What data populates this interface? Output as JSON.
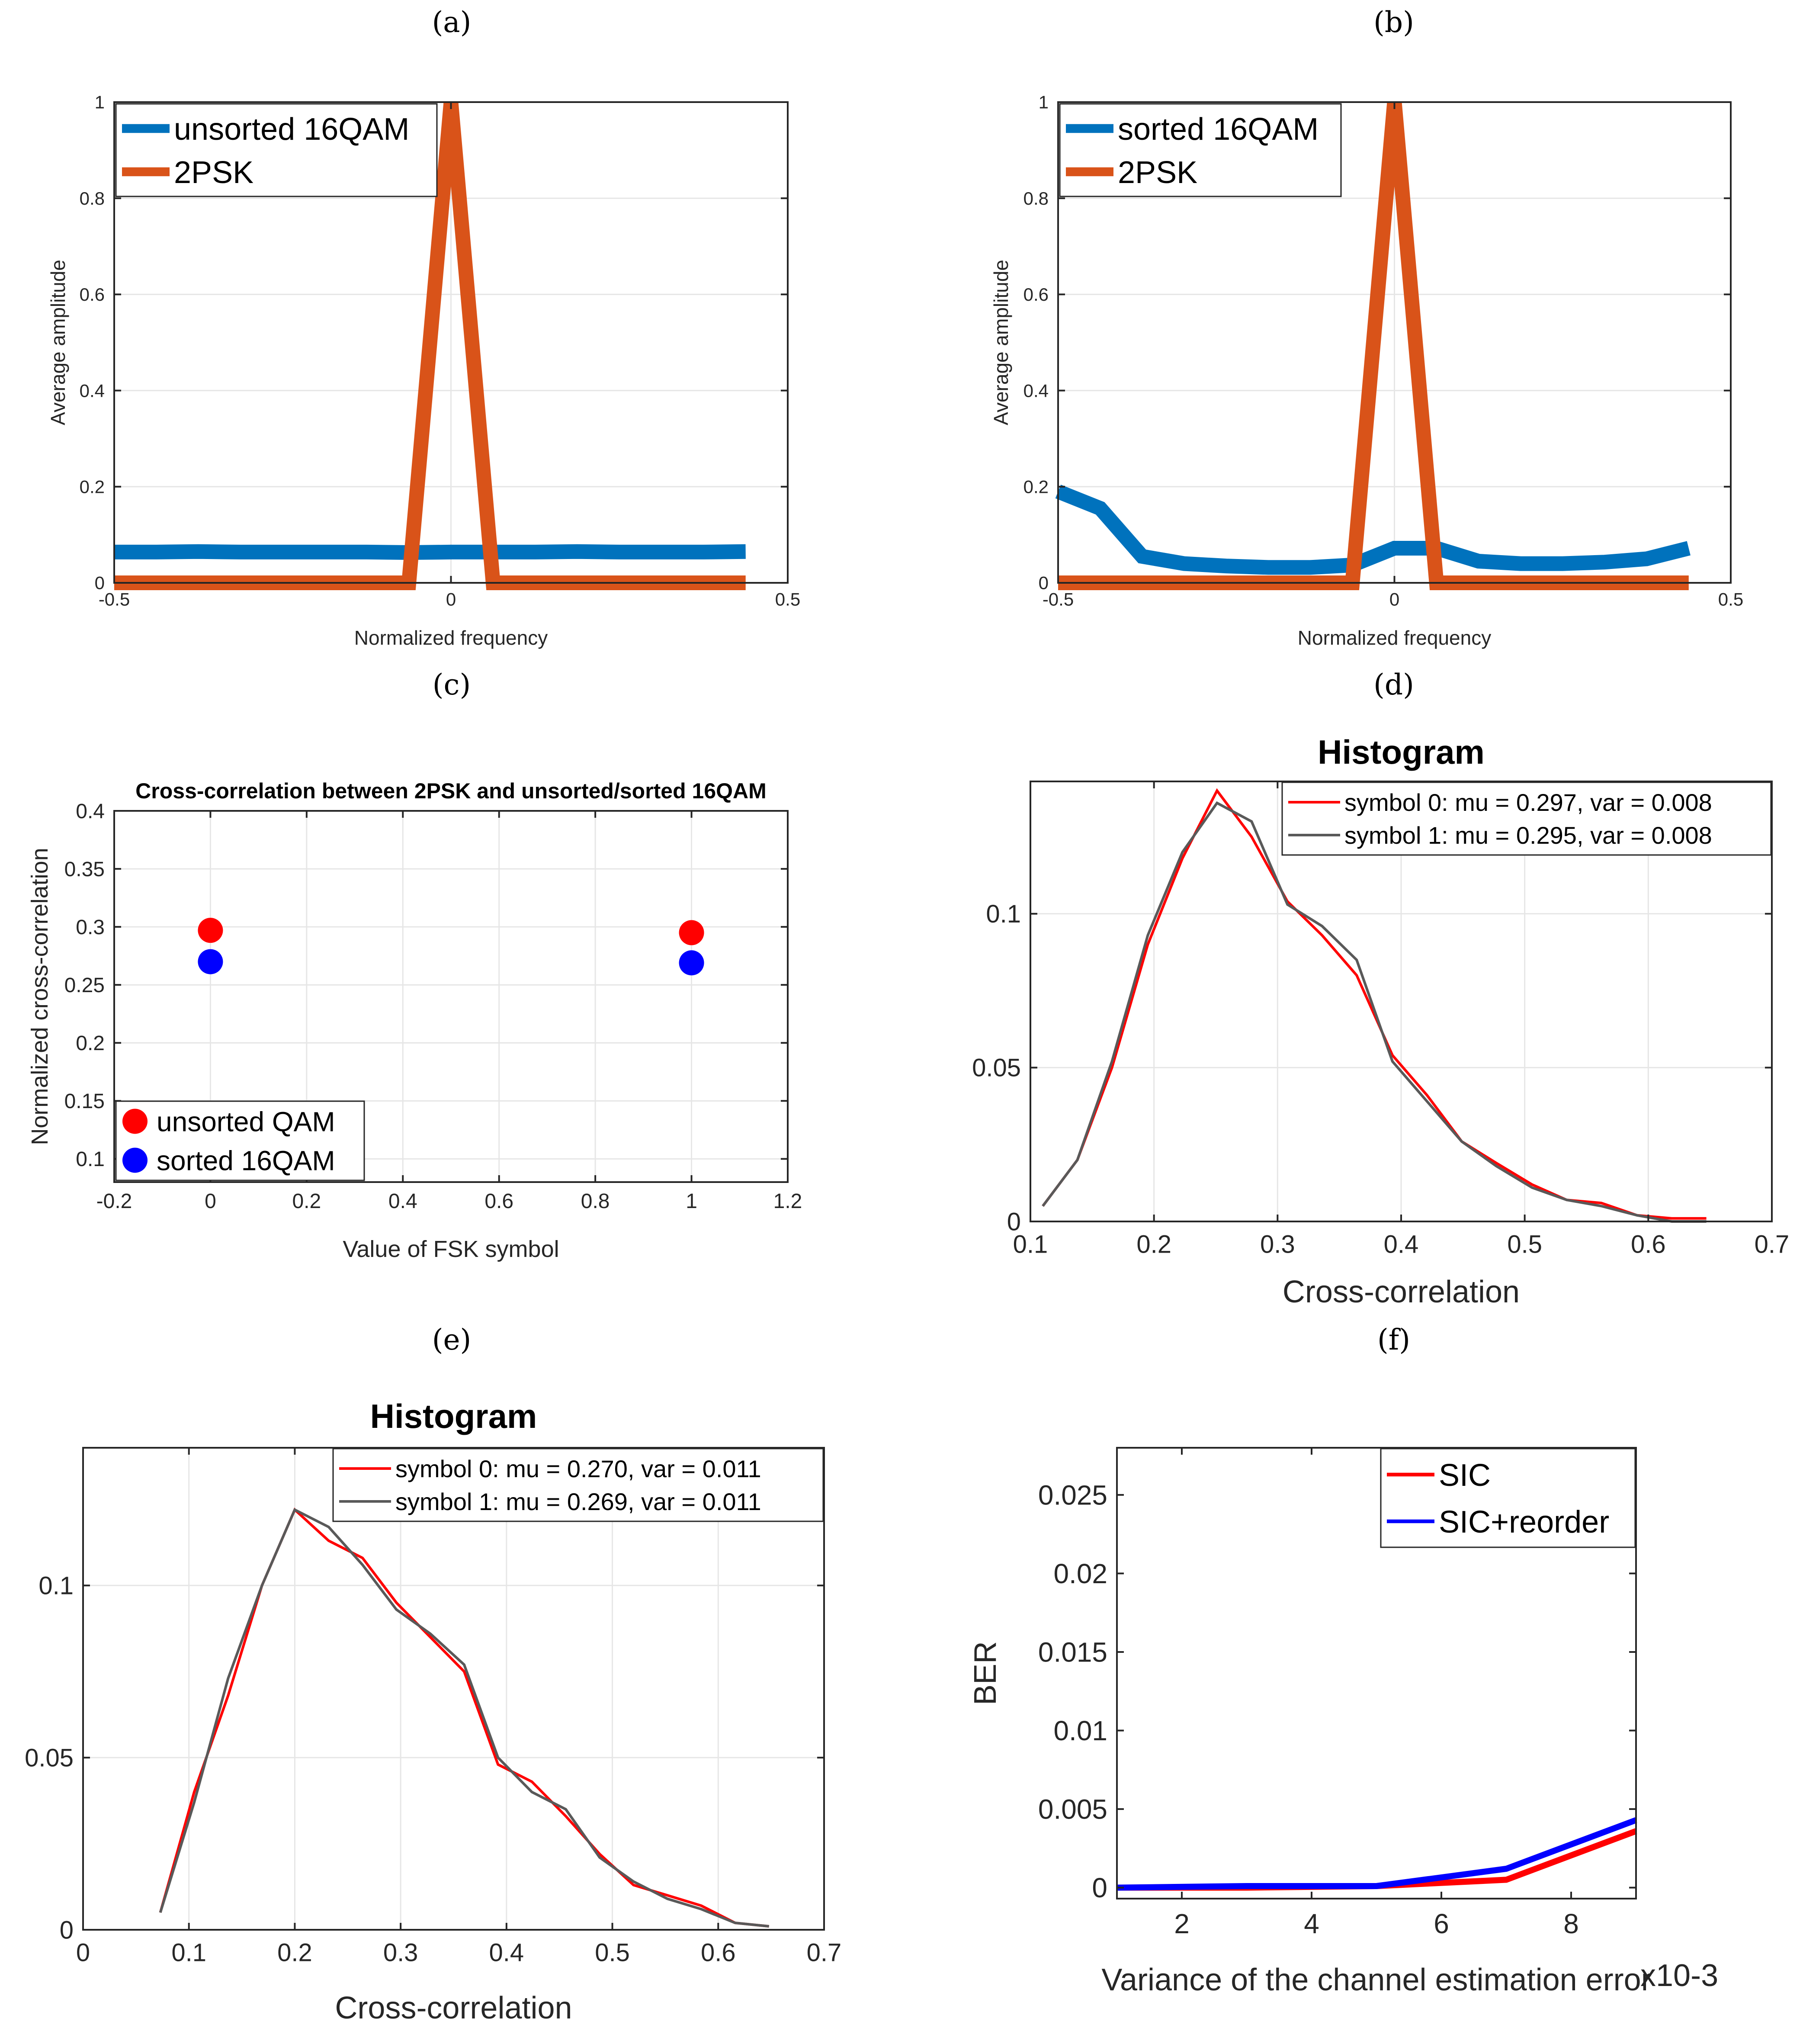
{
  "chart_data": [
    {
      "id": "a",
      "panel_label": "(a)",
      "type": "line",
      "title": "",
      "xlabel": "Normalized frequency",
      "ylabel": "Average amplitude",
      "xlim": [
        -0.5,
        0.5
      ],
      "ylim": [
        0,
        1
      ],
      "xticks": [
        -0.5,
        0,
        0.5
      ],
      "xtick_labels": [
        "-0.5",
        "0",
        "0.5"
      ],
      "yticks": [
        0,
        0.2,
        0.4,
        0.6,
        0.8,
        1
      ],
      "ytick_labels": [
        "0",
        "0.2",
        "0.4",
        "0.6",
        "0.8",
        "1"
      ],
      "grid": true,
      "legend": "top-left",
      "series": [
        {
          "name": "unsorted 16QAM",
          "color": "#0072BD",
          "x": [
            -0.5,
            -0.4375,
            -0.375,
            -0.3125,
            -0.25,
            -0.1875,
            -0.125,
            -0.0625,
            0,
            0.0625,
            0.125,
            0.1875,
            0.25,
            0.3125,
            0.375,
            0.4375
          ],
          "y": [
            0.064,
            0.064,
            0.065,
            0.064,
            0.064,
            0.064,
            0.064,
            0.063,
            0.064,
            0.064,
            0.064,
            0.065,
            0.064,
            0.064,
            0.064,
            0.065
          ]
        },
        {
          "name": "2PSK",
          "color": "#D95319",
          "x": [
            -0.5,
            -0.4375,
            -0.375,
            -0.3125,
            -0.25,
            -0.1875,
            -0.125,
            -0.0625,
            0,
            0.0625,
            0.125,
            0.1875,
            0.25,
            0.3125,
            0.375,
            0.4375
          ],
          "y": [
            0,
            0,
            0,
            0,
            0,
            0,
            0,
            0,
            1,
            0,
            0,
            0,
            0,
            0,
            0,
            0
          ]
        }
      ]
    },
    {
      "id": "b",
      "panel_label": "(b)",
      "type": "line",
      "title": "",
      "xlabel": "Normalized frequency",
      "ylabel": "Average amplitude",
      "xlim": [
        -0.5,
        0.5
      ],
      "ylim": [
        0,
        1
      ],
      "xticks": [
        -0.5,
        0,
        0.5
      ],
      "xtick_labels": [
        "-0.5",
        "0",
        "0.5"
      ],
      "yticks": [
        0,
        0.2,
        0.4,
        0.6,
        0.8,
        1
      ],
      "ytick_labels": [
        "0",
        "0.2",
        "0.4",
        "0.6",
        "0.8",
        "1"
      ],
      "grid": true,
      "legend": "top-left",
      "series": [
        {
          "name": "sorted 16QAM",
          "color": "#0072BD",
          "x": [
            -0.5,
            -0.4375,
            -0.375,
            -0.3125,
            -0.25,
            -0.1875,
            -0.125,
            -0.0625,
            0,
            0.0625,
            0.125,
            0.1875,
            0.25,
            0.3125,
            0.375,
            0.4375
          ],
          "y": [
            0.19,
            0.155,
            0.055,
            0.04,
            0.035,
            0.032,
            0.032,
            0.037,
            0.072,
            0.072,
            0.045,
            0.04,
            0.04,
            0.043,
            0.05,
            0.072
          ]
        },
        {
          "name": "2PSK",
          "color": "#D95319",
          "x": [
            -0.5,
            -0.4375,
            -0.375,
            -0.3125,
            -0.25,
            -0.1875,
            -0.125,
            -0.0625,
            0,
            0.0625,
            0.125,
            0.1875,
            0.25,
            0.3125,
            0.375,
            0.4375
          ],
          "y": [
            0,
            0,
            0,
            0,
            0,
            0,
            0,
            0,
            1,
            0,
            0,
            0,
            0,
            0,
            0,
            0
          ]
        }
      ]
    },
    {
      "id": "c",
      "panel_label": "(c)",
      "type": "scatter",
      "title": "Cross-correlation between 2PSK and unsorted/sorted 16QAM",
      "xlabel": "Value of FSK symbol",
      "ylabel": "Normalized cross-correlation",
      "xlim": [
        -0.2,
        1.2
      ],
      "ylim": [
        0.08,
        0.4
      ],
      "xticks": [
        -0.2,
        0,
        0.2,
        0.4,
        0.6,
        0.8,
        1,
        1.2
      ],
      "xtick_labels": [
        "-0.2",
        "0",
        "0.2",
        "0.4",
        "0.6",
        "0.8",
        "1",
        "1.2"
      ],
      "yticks": [
        0.1,
        0.15,
        0.2,
        0.25,
        0.3,
        0.35,
        0.4
      ],
      "ytick_labels": [
        "0.1",
        "0.15",
        "0.2",
        "0.25",
        "0.3",
        "0.35",
        "0.4"
      ],
      "grid": true,
      "legend": "bottom-left",
      "series": [
        {
          "name": "unsorted QAM",
          "color": "#FF0000",
          "x": [
            0,
            1
          ],
          "y": [
            0.297,
            0.295
          ]
        },
        {
          "name": "sorted 16QAM",
          "color": "#0000FF",
          "x": [
            0,
            1
          ],
          "y": [
            0.27,
            0.269
          ]
        }
      ]
    },
    {
      "id": "d",
      "panel_label": "(d)",
      "type": "line",
      "title": "Histogram",
      "xlabel": "Cross-correlation",
      "ylabel": "",
      "xlim": [
        0.1,
        0.7
      ],
      "ylim": [
        0,
        0.143
      ],
      "xticks": [
        0.1,
        0.2,
        0.3,
        0.4,
        0.5,
        0.6,
        0.7
      ],
      "xtick_labels": [
        "0.1",
        "0.2",
        "0.3",
        "0.4",
        "0.5",
        "0.6",
        "0.7"
      ],
      "yticks": [
        0,
        0.05,
        0.1
      ],
      "ytick_labels": [
        "0",
        "0.05",
        "0.1"
      ],
      "grid": true,
      "legend": "top-right",
      "series": [
        {
          "name": "symbol 0: mu = 0.297, var = 0.008",
          "color": "#FF0000",
          "x": [
            0.11,
            0.138,
            0.166,
            0.195,
            0.223,
            0.251,
            0.279,
            0.308,
            0.336,
            0.364,
            0.393,
            0.421,
            0.449,
            0.477,
            0.506,
            0.534,
            0.562,
            0.591,
            0.619,
            0.647
          ],
          "y": [
            0.005,
            0.02,
            0.05,
            0.09,
            0.118,
            0.14,
            0.125,
            0.104,
            0.093,
            0.08,
            0.054,
            0.041,
            0.026,
            0.019,
            0.012,
            0.007,
            0.006,
            0.002,
            0.001,
            0.001
          ]
        },
        {
          "name": "symbol 1: mu = 0.295, var = 0.008",
          "color": "#595959",
          "x": [
            0.11,
            0.138,
            0.166,
            0.195,
            0.223,
            0.251,
            0.279,
            0.308,
            0.336,
            0.364,
            0.393,
            0.421,
            0.449,
            0.477,
            0.506,
            0.534,
            0.562,
            0.591,
            0.619,
            0.647
          ],
          "y": [
            0.005,
            0.02,
            0.052,
            0.093,
            0.12,
            0.136,
            0.13,
            0.103,
            0.096,
            0.085,
            0.052,
            0.039,
            0.026,
            0.018,
            0.011,
            0.007,
            0.005,
            0.002,
            0,
            0
          ]
        }
      ]
    },
    {
      "id": "e",
      "panel_label": "(e)",
      "type": "line",
      "title": "Histogram",
      "xlabel": "Cross-correlation",
      "ylabel": "",
      "xlim": [
        0,
        0.7
      ],
      "ylim": [
        0,
        0.14
      ],
      "xticks": [
        0,
        0.1,
        0.2,
        0.3,
        0.4,
        0.5,
        0.6,
        0.7
      ],
      "xtick_labels": [
        "0",
        "0.1",
        "0.2",
        "0.3",
        "0.4",
        "0.5",
        "0.6",
        "0.7"
      ],
      "yticks": [
        0,
        0.05,
        0.1
      ],
      "ytick_labels": [
        "0",
        "0.05",
        "0.1"
      ],
      "grid": true,
      "legend": "top-right",
      "series": [
        {
          "name": "symbol 0: mu = 0.270, var = 0.011",
          "color": "#FF0000",
          "x": [
            0.073,
            0.105,
            0.137,
            0.169,
            0.2,
            0.232,
            0.264,
            0.296,
            0.328,
            0.36,
            0.392,
            0.424,
            0.456,
            0.488,
            0.52,
            0.552,
            0.584,
            0.616,
            0.648
          ],
          "y": [
            0.005,
            0.04,
            0.068,
            0.1,
            0.122,
            0.113,
            0.108,
            0.095,
            0.085,
            0.075,
            0.048,
            0.043,
            0.033,
            0.022,
            0.013,
            0.01,
            0.007,
            0.002,
            0.001
          ]
        },
        {
          "name": "symbol 1: mu = 0.269, var = 0.011",
          "color": "#595959",
          "x": [
            0.073,
            0.105,
            0.137,
            0.169,
            0.2,
            0.232,
            0.264,
            0.296,
            0.328,
            0.36,
            0.392,
            0.424,
            0.456,
            0.488,
            0.52,
            0.552,
            0.584,
            0.616,
            0.648
          ],
          "y": [
            0.005,
            0.037,
            0.073,
            0.1,
            0.122,
            0.117,
            0.106,
            0.093,
            0.086,
            0.077,
            0.05,
            0.04,
            0.035,
            0.021,
            0.014,
            0.009,
            0.006,
            0.002,
            0.001
          ]
        }
      ]
    },
    {
      "id": "f",
      "panel_label": "(f)",
      "type": "line",
      "title": "",
      "xlabel": "Variance of the channel estimation error",
      "xlabel_suffix": "x10-3",
      "ylabel": "BER",
      "xlim": [
        1,
        9
      ],
      "ylim": [
        -0.0007,
        0.028
      ],
      "xticks": [
        2,
        4,
        6,
        8
      ],
      "xtick_labels": [
        "2",
        "4",
        "6",
        "8"
      ],
      "yticks": [
        0,
        0.005,
        0.01,
        0.015,
        0.02,
        0.025
      ],
      "ytick_labels": [
        "0",
        "0.005",
        "0.01",
        "0.015",
        "0.02",
        "0.025"
      ],
      "grid": false,
      "legend": "top-right",
      "series": [
        {
          "name": "SIC",
          "color": "#FF0000",
          "x": [
            1,
            3,
            5,
            7,
            9
          ],
          "y": [
            0,
            0,
            0.0001,
            0.0005,
            0.0036
          ]
        },
        {
          "name": "SIC+reorder",
          "color": "#0000FF",
          "x": [
            1,
            3,
            5,
            7,
            9
          ],
          "y": [
            0,
            0.0001,
            0.0001,
            0.0012,
            0.0043
          ]
        }
      ]
    }
  ]
}
